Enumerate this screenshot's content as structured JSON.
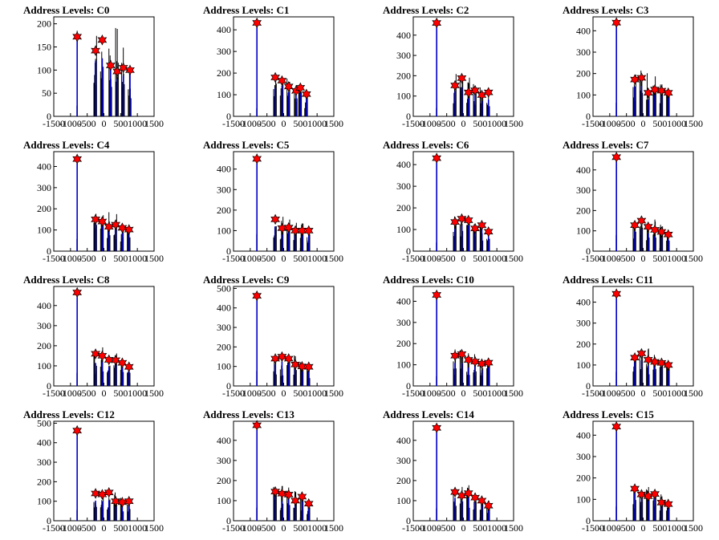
{
  "chart_data": [
    {
      "type": "bar",
      "title": "Address Levels: C0",
      "xticks": [
        -1500,
        -1000,
        -500,
        0,
        500,
        1000,
        1500
      ],
      "xlim": [
        -1500,
        1500
      ],
      "ylim": [
        0,
        215
      ],
      "yticks": [
        0,
        50,
        100,
        150,
        200
      ],
      "peaks": [
        {
          "x": -800,
          "y": 172,
          "h": 185
        },
        {
          "x": -250,
          "y": 142,
          "h": 190
        },
        {
          "x": -50,
          "y": 165,
          "h": 165
        },
        {
          "x": 200,
          "y": 110,
          "h": 190
        },
        {
          "x": 400,
          "y": 97,
          "h": 195
        },
        {
          "x": 580,
          "y": 105,
          "h": 150
        },
        {
          "x": 780,
          "y": 100,
          "h": 110
        }
      ],
      "peak_color": "#ff0000",
      "bar_color": "#0000cc"
    },
    {
      "type": "bar",
      "title": "Address Levels: C1",
      "xticks": [
        -1500,
        -1000,
        -500,
        0,
        500,
        1000,
        1500
      ],
      "xlim": [
        -1500,
        1500
      ],
      "ylim": [
        0,
        460
      ],
      "yticks": [
        0,
        100,
        200,
        300,
        400
      ],
      "peaks": [
        {
          "x": -800,
          "y": 432,
          "h": 432
        },
        {
          "x": -250,
          "y": 180,
          "h": 200
        },
        {
          "x": -50,
          "y": 165,
          "h": 210
        },
        {
          "x": 150,
          "y": 138,
          "h": 180
        },
        {
          "x": 370,
          "y": 118,
          "h": 170
        },
        {
          "x": 500,
          "y": 132,
          "h": 150
        },
        {
          "x": 680,
          "y": 103,
          "h": 120
        }
      ],
      "peak_color": "#ff0000",
      "bar_color": "#0000cc"
    },
    {
      "type": "bar",
      "title": "Address Levels: C2",
      "xticks": [
        -1500,
        -1000,
        -500,
        0,
        500,
        1000,
        1500
      ],
      "xlim": [
        -1500,
        1500
      ],
      "ylim": [
        0,
        490
      ],
      "yticks": [
        0,
        100,
        200,
        300,
        400
      ],
      "peaks": [
        {
          "x": -800,
          "y": 460,
          "h": 460
        },
        {
          "x": -250,
          "y": 152,
          "h": 210
        },
        {
          "x": -50,
          "y": 188,
          "h": 200
        },
        {
          "x": 150,
          "y": 118,
          "h": 210
        },
        {
          "x": 350,
          "y": 128,
          "h": 180
        },
        {
          "x": 550,
          "y": 105,
          "h": 160
        },
        {
          "x": 750,
          "y": 118,
          "h": 120
        }
      ],
      "peak_color": "#ff0000",
      "bar_color": "#0000cc"
    },
    {
      "type": "bar",
      "title": "Address Levels: C3",
      "xticks": [
        -1500,
        -1000,
        -500,
        0,
        500,
        1000,
        1500
      ],
      "xlim": [
        -1500,
        1500
      ],
      "ylim": [
        0,
        465
      ],
      "yticks": [
        0,
        100,
        200,
        300,
        400
      ],
      "peaks": [
        {
          "x": -800,
          "y": 438,
          "h": 438
        },
        {
          "x": -250,
          "y": 172,
          "h": 235
        },
        {
          "x": -50,
          "y": 180,
          "h": 225
        },
        {
          "x": 150,
          "y": 110,
          "h": 220
        },
        {
          "x": 350,
          "y": 125,
          "h": 200
        },
        {
          "x": 550,
          "y": 120,
          "h": 160
        },
        {
          "x": 750,
          "y": 110,
          "h": 125
        }
      ],
      "peak_color": "#ff0000",
      "bar_color": "#0000cc"
    },
    {
      "type": "bar",
      "title": "Address Levels: C4",
      "xticks": [
        -1500,
        -1000,
        -500,
        0,
        500,
        1000,
        1500
      ],
      "xlim": [
        -1500,
        1500
      ],
      "ylim": [
        0,
        470
      ],
      "yticks": [
        0,
        100,
        200,
        300,
        400
      ],
      "peaks": [
        {
          "x": -800,
          "y": 435,
          "h": 435
        },
        {
          "x": -250,
          "y": 150,
          "h": 180
        },
        {
          "x": -50,
          "y": 140,
          "h": 185
        },
        {
          "x": 150,
          "y": 115,
          "h": 185
        },
        {
          "x": 350,
          "y": 125,
          "h": 180
        },
        {
          "x": 550,
          "y": 110,
          "h": 140
        },
        {
          "x": 750,
          "y": 102,
          "h": 120
        }
      ],
      "peak_color": "#ff0000",
      "bar_color": "#0000cc"
    },
    {
      "type": "bar",
      "title": "Address Levels: C5",
      "xticks": [
        -1500,
        -1000,
        -500,
        0,
        500,
        1000,
        1500
      ],
      "xlim": [
        -1500,
        1500
      ],
      "ylim": [
        0,
        485
      ],
      "yticks": [
        0,
        100,
        200,
        300,
        400
      ],
      "peaks": [
        {
          "x": -800,
          "y": 450,
          "h": 450
        },
        {
          "x": -250,
          "y": 155,
          "h": 185
        },
        {
          "x": -50,
          "y": 112,
          "h": 180
        },
        {
          "x": 150,
          "y": 115,
          "h": 190
        },
        {
          "x": 350,
          "y": 100,
          "h": 170
        },
        {
          "x": 550,
          "y": 100,
          "h": 140
        },
        {
          "x": 750,
          "y": 100,
          "h": 115
        }
      ],
      "peak_color": "#ff0000",
      "bar_color": "#0000cc"
    },
    {
      "type": "bar",
      "title": "Address Levels: C6",
      "xticks": [
        -1500,
        -1000,
        -500,
        0,
        500,
        1000,
        1500
      ],
      "xlim": [
        -1500,
        1500
      ],
      "ylim": [
        0,
        460
      ],
      "yticks": [
        0,
        100,
        200,
        300,
        400
      ],
      "peaks": [
        {
          "x": -800,
          "y": 430,
          "h": 430
        },
        {
          "x": -250,
          "y": 135,
          "h": 170
        },
        {
          "x": -50,
          "y": 150,
          "h": 175
        },
        {
          "x": 150,
          "y": 143,
          "h": 175
        },
        {
          "x": 350,
          "y": 105,
          "h": 170
        },
        {
          "x": 550,
          "y": 120,
          "h": 135
        },
        {
          "x": 750,
          "y": 90,
          "h": 105
        }
      ],
      "peak_color": "#ff0000",
      "bar_color": "#0000cc"
    },
    {
      "type": "bar",
      "title": "Address Levels: C7",
      "xticks": [
        -1500,
        -1000,
        -500,
        0,
        500,
        1000,
        1500
      ],
      "xlim": [
        -1500,
        1500
      ],
      "ylim": [
        0,
        490
      ],
      "yticks": [
        0,
        100,
        200,
        300,
        400
      ],
      "peaks": [
        {
          "x": -800,
          "y": 463,
          "h": 463
        },
        {
          "x": -250,
          "y": 128,
          "h": 185
        },
        {
          "x": -50,
          "y": 150,
          "h": 180
        },
        {
          "x": 150,
          "y": 120,
          "h": 180
        },
        {
          "x": 350,
          "y": 105,
          "h": 160
        },
        {
          "x": 550,
          "y": 95,
          "h": 130
        },
        {
          "x": 750,
          "y": 82,
          "h": 100
        }
      ],
      "peak_color": "#ff0000",
      "bar_color": "#0000cc"
    },
    {
      "type": "bar",
      "title": "Address Levels: C8",
      "xticks": [
        -1500,
        -1000,
        -500,
        0,
        500,
        1000,
        1500
      ],
      "xlim": [
        -1500,
        1500
      ],
      "ylim": [
        0,
        495
      ],
      "yticks": [
        0,
        100,
        200,
        300,
        400
      ],
      "peaks": [
        {
          "x": -800,
          "y": 465,
          "h": 465
        },
        {
          "x": -250,
          "y": 160,
          "h": 190
        },
        {
          "x": -50,
          "y": 150,
          "h": 200
        },
        {
          "x": 150,
          "y": 130,
          "h": 190
        },
        {
          "x": 350,
          "y": 128,
          "h": 175
        },
        {
          "x": 550,
          "y": 115,
          "h": 145
        },
        {
          "x": 750,
          "y": 95,
          "h": 110
        }
      ],
      "peak_color": "#ff0000",
      "bar_color": "#0000cc"
    },
    {
      "type": "bar",
      "title": "Address Levels: C9",
      "xticks": [
        -1500,
        -1000,
        -500,
        0,
        500,
        1000,
        1500
      ],
      "xlim": [
        -1500,
        1500
      ],
      "ylim": [
        0,
        510
      ],
      "yticks": [
        0,
        100,
        200,
        300,
        400,
        500
      ],
      "peaks": [
        {
          "x": -800,
          "y": 462,
          "h": 462
        },
        {
          "x": -250,
          "y": 140,
          "h": 170
        },
        {
          "x": -50,
          "y": 150,
          "h": 170
        },
        {
          "x": 150,
          "y": 140,
          "h": 175
        },
        {
          "x": 350,
          "y": 110,
          "h": 160
        },
        {
          "x": 550,
          "y": 100,
          "h": 130
        },
        {
          "x": 750,
          "y": 98,
          "h": 110
        }
      ],
      "peak_color": "#ff0000",
      "bar_color": "#0000cc"
    },
    {
      "type": "bar",
      "title": "Address Levels: C10",
      "xticks": [
        -1500,
        -1000,
        -500,
        0,
        500,
        1000,
        1500
      ],
      "xlim": [
        -1500,
        1500
      ],
      "ylim": [
        0,
        470
      ],
      "yticks": [
        0,
        100,
        200,
        300,
        400
      ],
      "peaks": [
        {
          "x": -800,
          "y": 430,
          "h": 430
        },
        {
          "x": -250,
          "y": 143,
          "h": 175
        },
        {
          "x": -50,
          "y": 150,
          "h": 175
        },
        {
          "x": 150,
          "y": 123,
          "h": 170
        },
        {
          "x": 350,
          "y": 115,
          "h": 150
        },
        {
          "x": 550,
          "y": 105,
          "h": 130
        },
        {
          "x": 750,
          "y": 110,
          "h": 120
        }
      ],
      "peak_color": "#ff0000",
      "bar_color": "#0000cc"
    },
    {
      "type": "bar",
      "title": "Address Levels: C11",
      "xticks": [
        -1500,
        -1000,
        -500,
        0,
        500,
        1000,
        1500
      ],
      "xlim": [
        -1500,
        1500
      ],
      "ylim": [
        0,
        475
      ],
      "yticks": [
        0,
        100,
        200,
        300,
        400
      ],
      "peaks": [
        {
          "x": -800,
          "y": 440,
          "h": 440
        },
        {
          "x": -250,
          "y": 135,
          "h": 175
        },
        {
          "x": -50,
          "y": 155,
          "h": 175
        },
        {
          "x": 150,
          "y": 125,
          "h": 185
        },
        {
          "x": 350,
          "y": 115,
          "h": 150
        },
        {
          "x": 550,
          "y": 110,
          "h": 130
        },
        {
          "x": 750,
          "y": 100,
          "h": 115
        }
      ],
      "peak_color": "#ff0000",
      "bar_color": "#0000cc"
    },
    {
      "type": "bar",
      "title": "Address Levels: C12",
      "xticks": [
        -1500,
        -1000,
        -500,
        0,
        500,
        1000,
        1500
      ],
      "xlim": [
        -1500,
        1500
      ],
      "ylim": [
        0,
        510
      ],
      "yticks": [
        0,
        100,
        200,
        300,
        400,
        500
      ],
      "peaks": [
        {
          "x": -800,
          "y": 462,
          "h": 462
        },
        {
          "x": -250,
          "y": 140,
          "h": 170
        },
        {
          "x": -50,
          "y": 135,
          "h": 165
        },
        {
          "x": 150,
          "y": 145,
          "h": 165
        },
        {
          "x": 350,
          "y": 100,
          "h": 150
        },
        {
          "x": 550,
          "y": 95,
          "h": 125
        },
        {
          "x": 750,
          "y": 100,
          "h": 110
        }
      ],
      "peak_color": "#ff0000",
      "bar_color": "#0000cc"
    },
    {
      "type": "bar",
      "title": "Address Levels: C13",
      "xticks": [
        -1500,
        -1000,
        -500,
        0,
        500,
        1000,
        1500
      ],
      "xlim": [
        -1500,
        1500
      ],
      "ylim": [
        0,
        495
      ],
      "yticks": [
        0,
        100,
        200,
        300,
        400
      ],
      "peaks": [
        {
          "x": -800,
          "y": 475,
          "h": 475
        },
        {
          "x": -250,
          "y": 145,
          "h": 180
        },
        {
          "x": -50,
          "y": 135,
          "h": 175
        },
        {
          "x": 150,
          "y": 130,
          "h": 175
        },
        {
          "x": 350,
          "y": 100,
          "h": 165
        },
        {
          "x": 550,
          "y": 120,
          "h": 140
        },
        {
          "x": 750,
          "y": 85,
          "h": 110
        }
      ],
      "peak_color": "#ff0000",
      "bar_color": "#0000cc"
    },
    {
      "type": "bar",
      "title": "Address Levels: C14",
      "xticks": [
        -1500,
        -1000,
        -500,
        0,
        500,
        1000,
        1500
      ],
      "xlim": [
        -1500,
        1500
      ],
      "ylim": [
        0,
        495
      ],
      "yticks": [
        0,
        100,
        200,
        300,
        400
      ],
      "peaks": [
        {
          "x": -800,
          "y": 462,
          "h": 462
        },
        {
          "x": -250,
          "y": 143,
          "h": 175
        },
        {
          "x": -50,
          "y": 125,
          "h": 175
        },
        {
          "x": 150,
          "y": 137,
          "h": 180
        },
        {
          "x": 350,
          "y": 115,
          "h": 160
        },
        {
          "x": 550,
          "y": 100,
          "h": 130
        },
        {
          "x": 750,
          "y": 75,
          "h": 105
        }
      ],
      "peak_color": "#ff0000",
      "bar_color": "#0000cc"
    },
    {
      "type": "bar",
      "title": "Address Levels: C15",
      "xticks": [
        -1500,
        -1000,
        -500,
        0,
        500,
        1000,
        1500
      ],
      "xlim": [
        -1500,
        1500
      ],
      "ylim": [
        0,
        465
      ],
      "yticks": [
        0,
        100,
        200,
        300,
        400
      ],
      "peaks": [
        {
          "x": -800,
          "y": 440,
          "h": 440
        },
        {
          "x": -250,
          "y": 150,
          "h": 180
        },
        {
          "x": -50,
          "y": 123,
          "h": 175
        },
        {
          "x": 150,
          "y": 115,
          "h": 175
        },
        {
          "x": 350,
          "y": 125,
          "h": 160
        },
        {
          "x": 550,
          "y": 85,
          "h": 130
        },
        {
          "x": 750,
          "y": 78,
          "h": 100
        }
      ],
      "peak_color": "#ff0000",
      "bar_color": "#0000cc"
    }
  ]
}
